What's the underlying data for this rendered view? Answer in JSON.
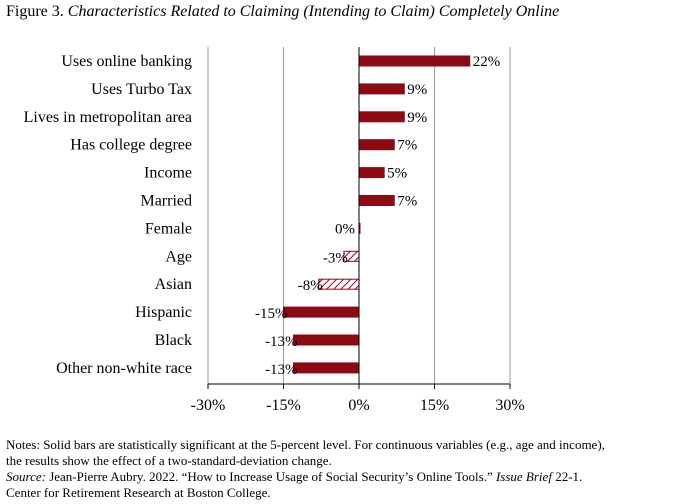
{
  "figure": {
    "label": "Figure 3.",
    "title": "Characteristics Related to Claiming (Intending to Claim) Completely Online"
  },
  "chart_data": {
    "type": "bar",
    "orientation": "horizontal",
    "categories": [
      "Uses online banking",
      "Uses Turbo Tax",
      "Lives in metropolitan area",
      "Has college degree",
      "Income",
      "Married",
      "Female",
      "Age",
      "Asian",
      "Hispanic",
      "Black",
      "Other non-white race"
    ],
    "values": [
      22,
      9,
      9,
      7,
      5,
      7,
      0,
      -3,
      -8,
      -15,
      -13,
      -13
    ],
    "value_labels": [
      "22%",
      "9%",
      "9%",
      "7%",
      "5%",
      "7%",
      "0%",
      "-3%",
      "-8%",
      "-15%",
      "-13%",
      "-13%"
    ],
    "significant": [
      true,
      true,
      true,
      true,
      true,
      true,
      false,
      false,
      false,
      true,
      true,
      true
    ],
    "xlim": [
      -30,
      30
    ],
    "xticks": [
      -30,
      -15,
      0,
      15,
      30
    ],
    "xtick_labels": [
      "-30%",
      "-15%",
      "0%",
      "15%",
      "30%"
    ],
    "grid": "vertical",
    "bar_color": "#8b0a14",
    "hatch_color": "#8b0a14"
  },
  "notes": {
    "line1": "Notes: Solid bars are statistically significant at the 5-percent level.  For continuous variables (e.g., age and income),",
    "line2": "the results show the effect of a two-standard-deviation change.",
    "source_label": "Source:",
    "source_text": " Jean-Pierre Aubry. 2022. “How to Increase Usage of Social Security’s Online Tools.” ",
    "source_italic": "Issue Brief",
    "source_tail": " 22-1.",
    "line4": "Center for Retirement Research at Boston College."
  }
}
